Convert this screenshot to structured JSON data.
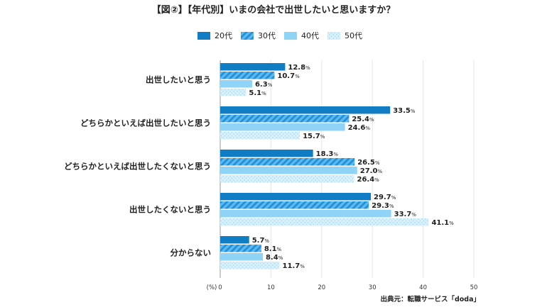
{
  "chart_data": {
    "type": "bar",
    "orientation": "horizontal",
    "title": "【図②】【年代別】いまの会社で出世したいと思いますか？",
    "categories": [
      "出世したいと思う",
      "どちらかといえば出世したいと思う",
      "どちらかといえば出世したくないと思う",
      "出世したくないと思う",
      "分からない"
    ],
    "series": [
      {
        "name": "20代",
        "color": "#0f7cc4",
        "pattern": "solid",
        "values": [
          12.8,
          33.5,
          18.3,
          29.7,
          5.7
        ]
      },
      {
        "name": "30代",
        "color": "#2d9be0",
        "pattern": "diagonal",
        "values": [
          10.7,
          25.4,
          26.5,
          29.3,
          8.1
        ]
      },
      {
        "name": "40代",
        "color": "#8fd3f6",
        "pattern": "solid",
        "values": [
          6.3,
          24.6,
          27.0,
          33.7,
          8.4
        ]
      },
      {
        "name": "50代",
        "color": "#cfeefb",
        "pattern": "dots",
        "values": [
          5.1,
          15.7,
          26.4,
          41.1,
          11.7
        ]
      }
    ],
    "value_unit": "%",
    "xlabel": "(%)",
    "xlim": [
      0,
      50
    ],
    "xticks": [
      0,
      10,
      20,
      30,
      40,
      50
    ],
    "legend_position": "top-center",
    "grid": true,
    "source": "出典元：転職サービス「doda」"
  }
}
